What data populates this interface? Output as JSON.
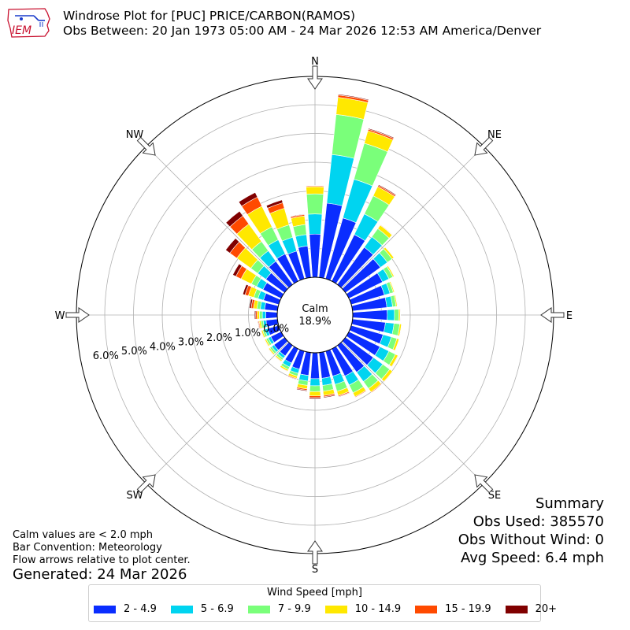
{
  "header": {
    "logo_text": "IEM",
    "title_line1": "Windrose Plot for [PUC] PRICE/CARBON(RAMOS)",
    "title_line2": "Obs Between: 20 Jan 1973 05:00 AM - 24 Mar 2026 12:53 AM America/Denver"
  },
  "notes": {
    "calm_note": "Calm values are < 2.0 mph",
    "bar_convention": "Bar Convention: Meteorology",
    "flow_note": "Flow arrows relative to plot center.",
    "generated": "Generated: 24 Mar 2026"
  },
  "summary": {
    "title": "Summary",
    "obs_used": "Obs Used: 385570",
    "obs_without_wind": "Obs Without Wind: 0",
    "avg_speed": "Avg Speed: 6.4 mph"
  },
  "legend": {
    "title": "Wind Speed [mph]"
  },
  "chart_data": {
    "type": "windrose",
    "center_label": "Calm",
    "center_value": "18.9%",
    "calm_percent": 18.9,
    "radial_ticks": [
      0,
      1,
      2,
      3,
      4,
      5,
      6
    ],
    "radial_tick_labels": [
      "0.0%",
      "1.0%",
      "2.0%",
      "3.0%",
      "4.0%",
      "5.0%",
      "6.0%"
    ],
    "radial_max": 7.0,
    "compass_labels": [
      "N",
      "NE",
      "E",
      "SE",
      "S",
      "SW",
      "W",
      "NW"
    ],
    "directions": [
      0,
      10,
      20,
      30,
      40,
      50,
      60,
      70,
      80,
      90,
      100,
      110,
      120,
      130,
      140,
      150,
      160,
      170,
      180,
      190,
      200,
      210,
      220,
      230,
      240,
      250,
      260,
      270,
      280,
      290,
      300,
      310,
      320,
      330,
      340,
      350
    ],
    "series": [
      {
        "name": "2 - 4.9",
        "color": "#0a2dff",
        "values": [
          1.5,
          2.6,
          2.2,
          1.8,
          1.6,
          1.5,
          1.3,
          1.2,
          1.2,
          1.2,
          1.15,
          1.15,
          1.2,
          1.2,
          1.15,
          1.05,
          0.9,
          0.9,
          0.9,
          0.8,
          0.65,
          0.55,
          0.45,
          0.45,
          0.4,
          0.4,
          0.4,
          0.4,
          0.45,
          0.55,
          0.7,
          0.8,
          1.0,
          1.05,
          1.0,
          1.1
        ]
      },
      {
        "name": "5 - 6.9",
        "color": "#00d4f0",
        "values": [
          0.7,
          1.7,
          1.4,
          0.8,
          0.45,
          0.3,
          0.25,
          0.2,
          0.2,
          0.25,
          0.3,
          0.3,
          0.35,
          0.4,
          0.4,
          0.35,
          0.3,
          0.25,
          0.25,
          0.2,
          0.15,
          0.15,
          0.1,
          0.1,
          0.1,
          0.1,
          0.1,
          0.12,
          0.15,
          0.2,
          0.25,
          0.35,
          0.45,
          0.55,
          0.5,
          0.4
        ]
      },
      {
        "name": "7 - 9.9",
        "color": "#7aff7a",
        "values": [
          0.7,
          1.4,
          1.3,
          0.7,
          0.35,
          0.2,
          0.15,
          0.12,
          0.12,
          0.15,
          0.2,
          0.2,
          0.25,
          0.3,
          0.3,
          0.3,
          0.25,
          0.2,
          0.2,
          0.15,
          0.1,
          0.1,
          0.08,
          0.08,
          0.08,
          0.08,
          0.08,
          0.1,
          0.12,
          0.15,
          0.2,
          0.3,
          0.4,
          0.5,
          0.45,
          0.35
        ]
      },
      {
        "name": "10 - 14.9",
        "color": "#ffe800",
        "values": [
          0.25,
          0.6,
          0.45,
          0.35,
          0.15,
          0.08,
          0.05,
          0.04,
          0.04,
          0.05,
          0.06,
          0.08,
          0.1,
          0.12,
          0.15,
          0.15,
          0.15,
          0.15,
          0.15,
          0.12,
          0.08,
          0.06,
          0.05,
          0.05,
          0.05,
          0.05,
          0.06,
          0.08,
          0.12,
          0.2,
          0.4,
          0.6,
          0.75,
          0.8,
          0.6,
          0.3
        ]
      },
      {
        "name": "15 - 19.9",
        "color": "#ff4a00",
        "values": [
          0.03,
          0.08,
          0.06,
          0.05,
          0.02,
          0.01,
          0.01,
          0.01,
          0.01,
          0.01,
          0.01,
          0.01,
          0.02,
          0.02,
          0.03,
          0.03,
          0.04,
          0.05,
          0.06,
          0.05,
          0.03,
          0.02,
          0.02,
          0.02,
          0.02,
          0.02,
          0.03,
          0.05,
          0.08,
          0.12,
          0.2,
          0.3,
          0.35,
          0.35,
          0.2,
          0.05
        ]
      },
      {
        "name": "20+",
        "color": "#800000",
        "values": [
          0.01,
          0.03,
          0.03,
          0.03,
          0.01,
          0.005,
          0.005,
          0.005,
          0.005,
          0.005,
          0.005,
          0.005,
          0.01,
          0.01,
          0.01,
          0.01,
          0.02,
          0.03,
          0.04,
          0.03,
          0.02,
          0.01,
          0.01,
          0.01,
          0.01,
          0.01,
          0.02,
          0.04,
          0.06,
          0.08,
          0.12,
          0.18,
          0.2,
          0.18,
          0.1,
          0.02
        ]
      }
    ]
  }
}
